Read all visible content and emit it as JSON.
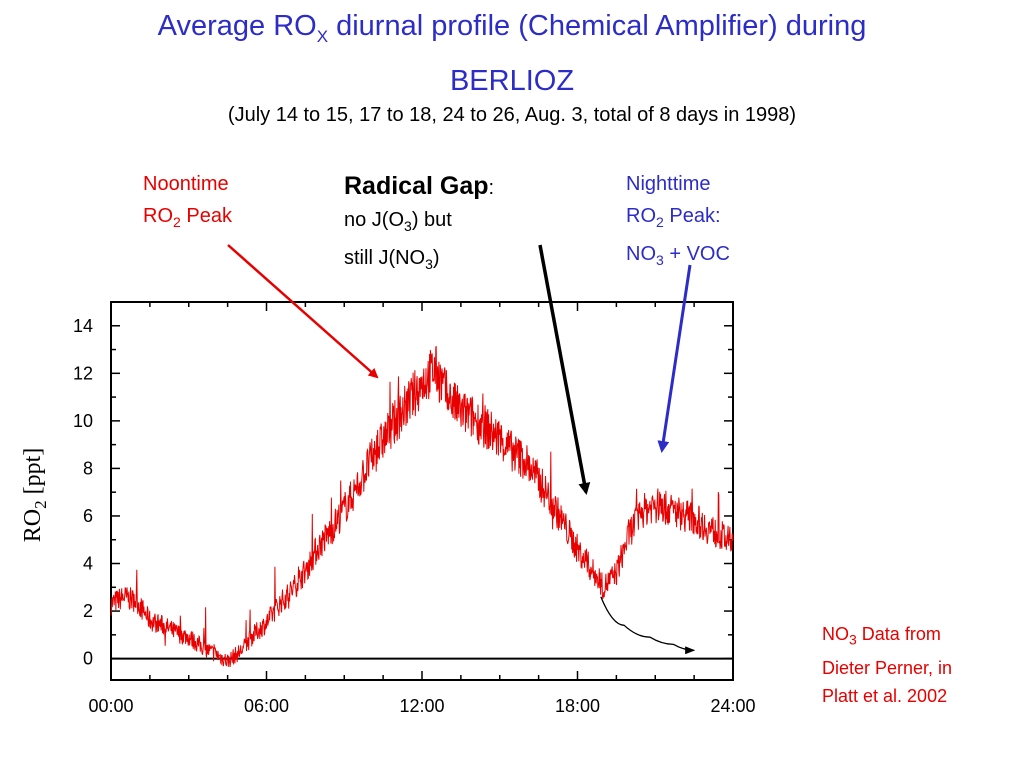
{
  "title": {
    "pre": "Average RO",
    "sub": "X",
    "post": " diurnal profile (Chemical Amplifier) during",
    "line2": "BERLIOZ"
  },
  "subtitle": "(July 14 to 15, 17 to 18, 24 to 26, Aug. 3, total of 8 days in 1998)",
  "annotations": {
    "noon": {
      "line1": "Noontime",
      "l2_pre": "RO",
      "l2_sub": "2",
      "l2_post": " Peak"
    },
    "gap": {
      "title": "Radical Gap",
      "colon": ":",
      "l2_pre": "no J(O",
      "l2_sub": "3",
      "l2_post": ") but",
      "l3_pre": "still J(NO",
      "l3_sub": "3",
      "l3_post": ")"
    },
    "night": {
      "line1": "Nighttime",
      "l2_pre": "RO",
      "l2_sub": "2",
      "l2_post": " Peak:",
      "l3_pre": "NO",
      "l3_sub": "3",
      "l3_post": " + VOC"
    },
    "source": {
      "l1_pre": "NO",
      "l1_sub": "3",
      "l1_post": " Data from",
      "line2": "Dieter Perner, in",
      "line3": "Platt et al. 2002"
    }
  },
  "colors": {
    "title": "#2c2cc8",
    "series": "#e80000",
    "noon_arrow": "#e80000",
    "night_arrow": "#2c2cc8",
    "gap_arrow": "#000000"
  },
  "chart_data": {
    "type": "line",
    "xlabel": "",
    "ylabel": "RO",
    "ylabel_sub": "2",
    "ylabel_unit": " [ppt]",
    "xlim": [
      0,
      24
    ],
    "ylim": [
      -0.9,
      15
    ],
    "x_ticks": [
      0,
      6,
      12,
      18,
      24
    ],
    "x_tick_labels": [
      "00:00",
      "06:00",
      "12:00",
      "18:00",
      "24:00"
    ],
    "y_ticks": [
      0,
      2,
      4,
      6,
      8,
      10,
      12,
      14
    ],
    "y_tick_labels": [
      "0",
      "2",
      "4",
      "6",
      "8",
      "10",
      "12",
      "14"
    ],
    "zero_line": true,
    "grid": false,
    "series": [
      {
        "x": [
          0,
          0.5,
          1,
          1.5,
          2,
          2.5,
          3,
          3.5,
          4,
          4.5,
          5,
          5.5,
          6,
          6.5,
          7,
          7.5,
          8,
          8.5,
          9,
          9.5,
          10,
          10.5,
          11,
          11.5,
          12,
          12.5,
          13,
          13.5,
          14,
          14.5,
          15,
          15.5,
          16,
          16.5,
          17,
          17.5,
          18,
          18.5,
          19,
          19.5,
          20,
          20.5,
          21,
          21.5,
          22,
          22.5,
          23,
          23.5,
          24
        ],
        "values": [
          2.3,
          2.6,
          2.4,
          1.6,
          1.4,
          1.1,
          0.9,
          0.5,
          0.2,
          -0.1,
          0.3,
          1.0,
          1.5,
          2.3,
          2.9,
          3.7,
          4.7,
          5.4,
          6.3,
          7.2,
          8.3,
          9.2,
          10.0,
          10.8,
          11.6,
          12.2,
          11.0,
          10.4,
          10.1,
          9.7,
          9.2,
          8.7,
          8.3,
          7.5,
          6.6,
          5.6,
          4.6,
          3.8,
          3.0,
          3.6,
          5.3,
          6.2,
          6.5,
          6.3,
          6.1,
          5.9,
          5.5,
          5.2,
          4.8
        ]
      }
    ],
    "fitted_curve": {
      "x": [
        18.9,
        19.8,
        20.8,
        21.7,
        22.5
      ],
      "values": [
        2.6,
        1.4,
        0.9,
        0.6,
        0.35
      ]
    }
  }
}
